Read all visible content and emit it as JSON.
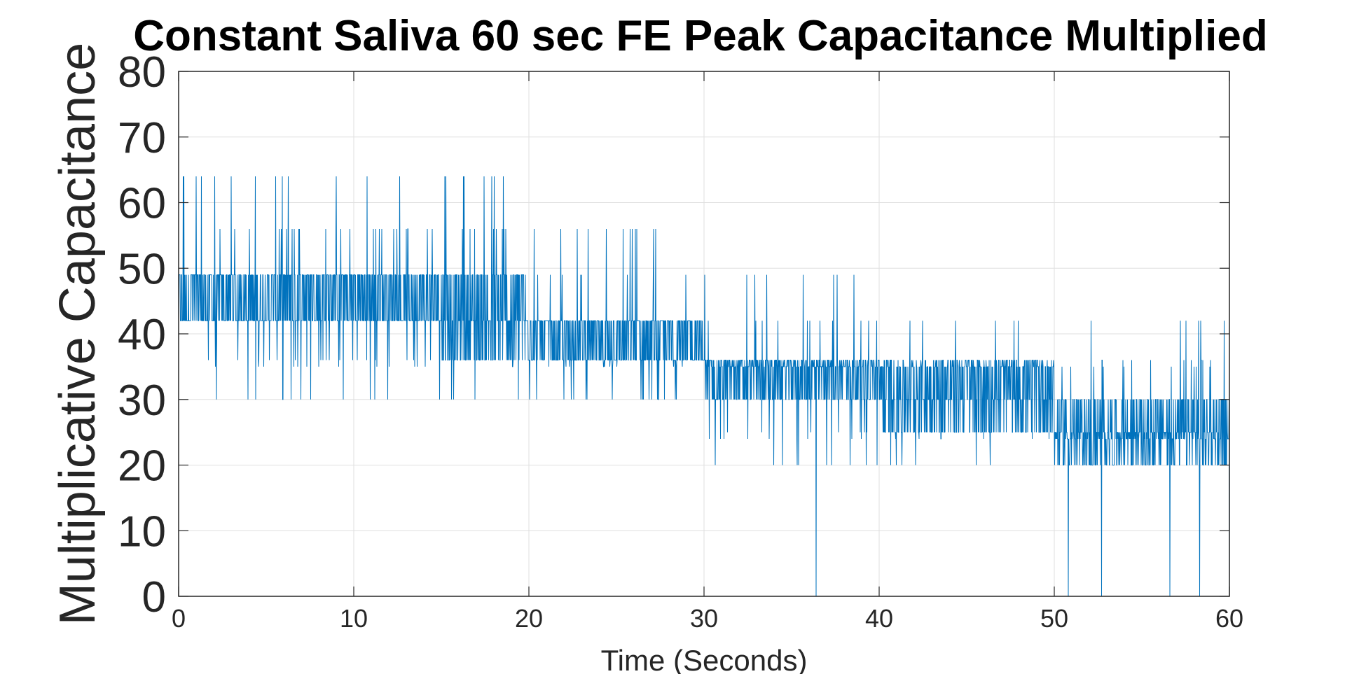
{
  "chart_data": {
    "type": "line",
    "title": "Constant Saliva 60 sec FE Peak Capacitance Multiplied",
    "xlabel": "Time (Seconds)",
    "ylabel": "Multiplicative Capacitance",
    "xlim": [
      0,
      60
    ],
    "ylim": [
      0,
      80
    ],
    "xticks": [
      0,
      10,
      20,
      30,
      40,
      50,
      60
    ],
    "yticks": [
      0,
      10,
      20,
      30,
      40,
      50,
      60,
      70,
      80
    ],
    "grid": true,
    "legend": "none",
    "series_color": "#0072BD",
    "levels": [
      20,
      24,
      25,
      30,
      35,
      36,
      42,
      49,
      56,
      64
    ],
    "segments": [
      {
        "x_start": 0,
        "x_end": 5,
        "typical": [
          42,
          49
        ],
        "min": 30,
        "max": 64
      },
      {
        "x_start": 5,
        "x_end": 15,
        "typical": [
          42,
          49
        ],
        "min": 30,
        "max": 64
      },
      {
        "x_start": 15,
        "x_end": 20,
        "typical": [
          36,
          49
        ],
        "min": 28,
        "max": 64
      },
      {
        "x_start": 20,
        "x_end": 30,
        "typical": [
          36,
          42
        ],
        "min": 30,
        "max": 56
      },
      {
        "x_start": 30,
        "x_end": 40,
        "typical": [
          30,
          36
        ],
        "min": 0,
        "max": 49
      },
      {
        "x_start": 40,
        "x_end": 50,
        "typical": [
          25,
          36
        ],
        "min": 20,
        "max": 42
      },
      {
        "x_start": 50,
        "x_end": 60,
        "typical": [
          20,
          30
        ],
        "min": 0,
        "max": 42
      }
    ],
    "notable_points": [
      {
        "x": 0.3,
        "y": 64
      },
      {
        "x": 1.0,
        "y": 64
      },
      {
        "x": 1.3,
        "y": 64
      },
      {
        "x": 3.0,
        "y": 64
      },
      {
        "x": 15.2,
        "y": 64
      },
      {
        "x": 16.3,
        "y": 64
      },
      {
        "x": 37.6,
        "y": 49
      },
      {
        "x": 36.4,
        "y": 0
      },
      {
        "x": 50.8,
        "y": 0
      },
      {
        "x": 52.7,
        "y": 0
      },
      {
        "x": 56.6,
        "y": 0
      },
      {
        "x": 58.3,
        "y": 0
      },
      {
        "x": 60,
        "y": 0
      },
      {
        "x": 59.7,
        "y": 42
      }
    ]
  }
}
